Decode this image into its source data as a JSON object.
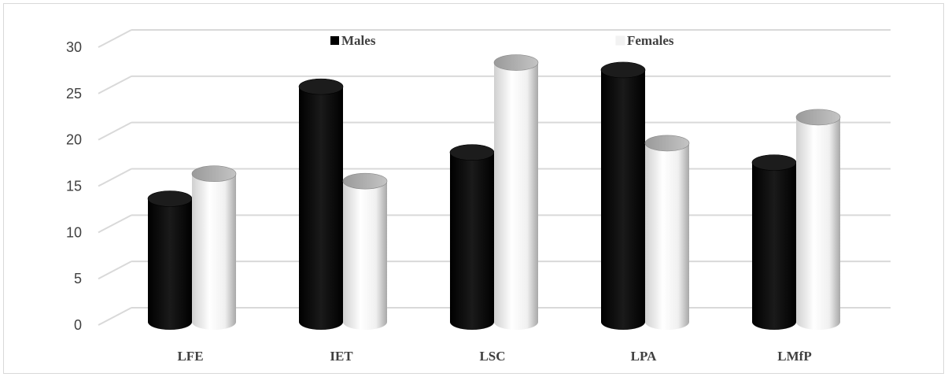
{
  "chart_data": {
    "type": "bar",
    "title": "",
    "xlabel": "",
    "ylabel": "",
    "categories": [
      "LFE",
      "IET",
      "LSC",
      "LPA",
      "LMfP"
    ],
    "series": [
      {
        "name": "Males",
        "color": "#000000",
        "values": [
          13.3,
          25.4,
          18.3,
          27.2,
          17.2
        ]
      },
      {
        "name": "Females",
        "color": "#f2f2f2",
        "values": [
          16.0,
          15.2,
          28.0,
          19.3,
          22.1
        ]
      }
    ],
    "ylim": [
      0,
      30
    ],
    "yticks": [
      "0",
      "5",
      "10",
      "15",
      "20",
      "25",
      "30"
    ],
    "grid": true,
    "legend_position": "top",
    "style": "3d-cylinder"
  }
}
